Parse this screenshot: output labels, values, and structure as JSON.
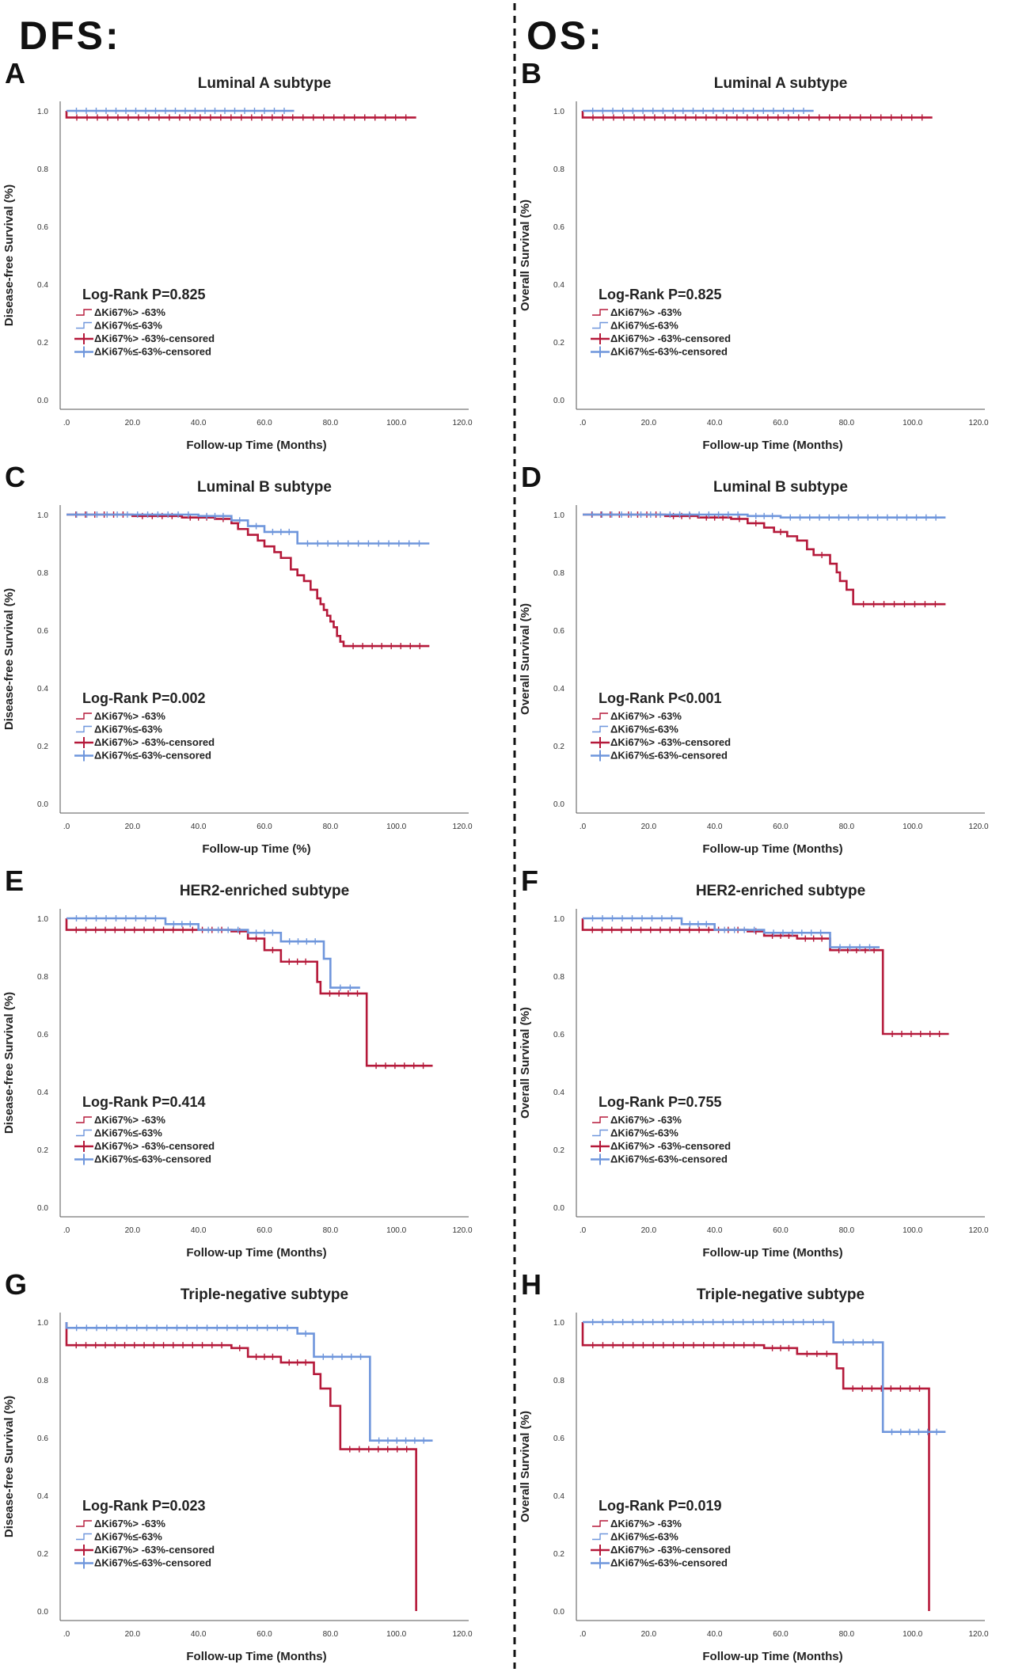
{
  "headers": {
    "left": "DFS:",
    "right": "OS:"
  },
  "colors": {
    "high": "#b5193a",
    "low": "#6f96dc",
    "axis": "#333333"
  },
  "chart_data": [
    {
      "type": "line",
      "letter": "A",
      "title": "Luminal A subtype",
      "xlabel": "Follow-up Time (Months)",
      "ylabel": "Disease-free Survival (%)",
      "xlim": [
        0,
        120
      ],
      "ylim": [
        0,
        1.0
      ],
      "xticks": [
        ".0",
        "20.0",
        "40.0",
        "60.0",
        "80.0",
        "100.0",
        "120.0"
      ],
      "yticks": [
        "0.0",
        "0.2",
        "0.4",
        "0.6",
        "0.8",
        "1.0"
      ],
      "pvalue": "Log-Rank P=0.825",
      "legend": [
        "ΔKi67%> -63%",
        "ΔKi67%≤-63%",
        "ΔKi67%> -63%-censored",
        "ΔKi67%≤-63%-censored"
      ],
      "series": [
        {
          "name": "ΔKi67%> -63%",
          "color": "#b5193a",
          "x": [
            0,
            0,
            106
          ],
          "y": [
            1.0,
            0.977,
            0.977
          ]
        },
        {
          "name": "ΔKi67%≤-63%",
          "color": "#6f96dc",
          "x": [
            0,
            69
          ],
          "y": [
            1.0,
            1.0
          ]
        }
      ]
    },
    {
      "type": "line",
      "letter": "B",
      "title": "Luminal A subtype",
      "xlabel": "Follow-up Time (Months)",
      "ylabel": "Overall Survival (%)",
      "xlim": [
        0,
        120
      ],
      "ylim": [
        0,
        1.0
      ],
      "xticks": [
        ".0",
        "20.0",
        "40.0",
        "60.0",
        "80.0",
        "100.0",
        "120.0"
      ],
      "yticks": [
        "0.0",
        "0.2",
        "0.4",
        "0.6",
        "0.8",
        "1.0"
      ],
      "pvalue": "Log-Rank P=0.825",
      "legend": [
        "ΔKi67%> -63%",
        "ΔKi67%≤-63%",
        "ΔKi67%> -63%-censored",
        "ΔKi67%≤-63%-censored"
      ],
      "series": [
        {
          "name": "ΔKi67%> -63%",
          "color": "#b5193a",
          "x": [
            0,
            0,
            106
          ],
          "y": [
            1.0,
            0.977,
            0.977
          ]
        },
        {
          "name": "ΔKi67%≤-63%",
          "color": "#6f96dc",
          "x": [
            0,
            70
          ],
          "y": [
            1.0,
            1.0
          ]
        }
      ]
    },
    {
      "type": "line",
      "letter": "C",
      "title": "Luminal B subtype",
      "xlabel": "Follow-up Time (%)",
      "ylabel": "Disease-free Survival (%)",
      "xlim": [
        0,
        120
      ],
      "ylim": [
        0,
        1.0
      ],
      "xticks": [
        ".0",
        "20.0",
        "40.0",
        "60.0",
        "80.0",
        "100.0",
        "120.0"
      ],
      "yticks": [
        "0.0",
        "0.2",
        "0.4",
        "0.6",
        "0.8",
        "1.0"
      ],
      "pvalue": "Log-Rank P=0.002",
      "legend": [
        "ΔKi67%> -63%",
        "ΔKi67%≤-63%",
        "ΔKi67%> -63%-censored",
        "ΔKi67%≤-63%-censored"
      ],
      "series": [
        {
          "name": "ΔKi67%> -63%",
          "color": "#b5193a",
          "x": [
            0,
            20,
            35,
            45,
            50,
            52,
            55,
            58,
            60,
            63,
            65,
            68,
            70,
            72,
            74,
            76,
            77,
            78,
            79,
            80,
            81,
            82,
            83,
            84,
            110
          ],
          "y": [
            1.0,
            0.995,
            0.99,
            0.985,
            0.97,
            0.95,
            0.93,
            0.91,
            0.89,
            0.87,
            0.85,
            0.81,
            0.79,
            0.77,
            0.74,
            0.71,
            0.69,
            0.67,
            0.65,
            0.63,
            0.61,
            0.58,
            0.56,
            0.545,
            0.545
          ]
        },
        {
          "name": "ΔKi67%≤-63%",
          "color": "#6f96dc",
          "x": [
            0,
            40,
            50,
            55,
            60,
            70,
            110
          ],
          "y": [
            1.0,
            0.995,
            0.98,
            0.96,
            0.94,
            0.9,
            0.9
          ]
        }
      ]
    },
    {
      "type": "line",
      "letter": "D",
      "title": "Luminal B subtype",
      "xlabel": "Follow-up Time (Months)",
      "ylabel": "Overall Survival (%)",
      "xlim": [
        0,
        120
      ],
      "ylim": [
        0,
        1.0
      ],
      "xticks": [
        ".0",
        "20.0",
        "40.0",
        "60.0",
        "80.0",
        "100.0",
        "120.0"
      ],
      "yticks": [
        "0.0",
        "0.2",
        "0.4",
        "0.6",
        "0.8",
        "1.0"
      ],
      "pvalue": "Log-Rank P<0.001",
      "legend": [
        "ΔKi67%> -63%",
        "ΔKi67%≤-63%",
        "ΔKi67%> -63%-censored",
        "ΔKi67%≤-63%-censored"
      ],
      "series": [
        {
          "name": "ΔKi67%> -63%",
          "color": "#b5193a",
          "x": [
            0,
            25,
            35,
            45,
            50,
            55,
            58,
            62,
            65,
            68,
            70,
            75,
            77,
            78,
            80,
            82,
            110
          ],
          "y": [
            1.0,
            0.995,
            0.99,
            0.985,
            0.97,
            0.955,
            0.94,
            0.925,
            0.91,
            0.88,
            0.86,
            0.83,
            0.8,
            0.77,
            0.74,
            0.69,
            0.69
          ]
        },
        {
          "name": "ΔKi67%≤-63%",
          "color": "#6f96dc",
          "x": [
            0,
            50,
            60,
            110
          ],
          "y": [
            1.0,
            0.995,
            0.99,
            0.99
          ]
        }
      ]
    },
    {
      "type": "line",
      "letter": "E",
      "title": "HER2-enriched subtype",
      "xlabel": "Follow-up Time (Months)",
      "ylabel": "Disease-free Survival (%)",
      "xlim": [
        0,
        120
      ],
      "ylim": [
        0,
        1.0
      ],
      "xticks": [
        ".0",
        "20.0",
        "40.0",
        "60.0",
        "80.0",
        "100.0",
        "120.0"
      ],
      "yticks": [
        "0.0",
        "0.2",
        "0.4",
        "0.6",
        "0.8",
        "1.0"
      ],
      "pvalue": "Log-Rank P=0.414",
      "legend": [
        "ΔKi67%> -63%",
        "ΔKi67%≤-63%",
        "ΔKi67%> -63%-censored",
        "ΔKi67%≤-63%-censored"
      ],
      "series": [
        {
          "name": "ΔKi67%> -63%",
          "color": "#b5193a",
          "x": [
            0,
            0,
            50,
            55,
            60,
            65,
            75,
            76,
            77,
            91,
            91,
            111
          ],
          "y": [
            1.0,
            0.96,
            0.955,
            0.93,
            0.89,
            0.85,
            0.85,
            0.78,
            0.74,
            0.74,
            0.49,
            0.49
          ]
        },
        {
          "name": "ΔKi67%≤-63%",
          "color": "#6f96dc",
          "x": [
            0,
            30,
            40,
            55,
            65,
            78,
            80,
            89
          ],
          "y": [
            1.0,
            0.98,
            0.96,
            0.95,
            0.92,
            0.86,
            0.76,
            0.76
          ]
        }
      ]
    },
    {
      "type": "line",
      "letter": "F",
      "title": "HER2-enriched subtype",
      "xlabel": "Follow-up Time (Months)",
      "ylabel": "Overall Survival (%)",
      "xlim": [
        0,
        120
      ],
      "ylim": [
        0,
        1.0
      ],
      "xticks": [
        ".0",
        "20.0",
        "40.0",
        "60.0",
        "80.0",
        "100.0",
        "120.0"
      ],
      "yticks": [
        "0.0",
        "0.2",
        "0.4",
        "0.6",
        "0.8",
        "1.0"
      ],
      "pvalue": "Log-Rank P=0.755",
      "legend": [
        "ΔKi67%> -63%",
        "ΔKi67%≤-63%",
        "ΔKi67%> -63%-censored",
        "ΔKi67%≤-63%-censored"
      ],
      "series": [
        {
          "name": "ΔKi67%> -63%",
          "color": "#b5193a",
          "x": [
            0,
            0,
            50,
            55,
            65,
            75,
            91,
            91,
            111
          ],
          "y": [
            1.0,
            0.96,
            0.955,
            0.94,
            0.93,
            0.89,
            0.89,
            0.6,
            0.6
          ]
        },
        {
          "name": "ΔKi67%≤-63%",
          "color": "#6f96dc",
          "x": [
            0,
            30,
            40,
            55,
            75,
            90
          ],
          "y": [
            1.0,
            0.98,
            0.96,
            0.95,
            0.9,
            0.9
          ]
        }
      ]
    },
    {
      "type": "line",
      "letter": "G",
      "title": "Triple-negative subtype",
      "xlabel": "Follow-up Time (Months)",
      "ylabel": "Disease-free Survival (%)",
      "xlim": [
        0,
        120
      ],
      "ylim": [
        0,
        1.0
      ],
      "xticks": [
        ".0",
        "20.0",
        "40.0",
        "60.0",
        "80.0",
        "100.0",
        "120.0"
      ],
      "yticks": [
        "0.0",
        "0.2",
        "0.4",
        "0.6",
        "0.8",
        "1.0"
      ],
      "pvalue": "Log-Rank P=0.023",
      "legend": [
        "ΔKi67%> -63%",
        "ΔKi67%≤-63%",
        "ΔKi67%> -63%-censored",
        "ΔKi67%≤-63%-censored"
      ],
      "series": [
        {
          "name": "ΔKi67%> -63%",
          "color": "#b5193a",
          "x": [
            0,
            0,
            50,
            55,
            65,
            75,
            77,
            80,
            83,
            106,
            106
          ],
          "y": [
            1.0,
            0.92,
            0.91,
            0.88,
            0.86,
            0.82,
            0.77,
            0.71,
            0.56,
            0.56,
            0.0
          ]
        },
        {
          "name": "ΔKi67%≤-63%",
          "color": "#6f96dc",
          "x": [
            0,
            0,
            70,
            75,
            92,
            92,
            111
          ],
          "y": [
            1.0,
            0.98,
            0.96,
            0.88,
            0.88,
            0.59,
            0.59
          ]
        }
      ]
    },
    {
      "type": "line",
      "letter": "H",
      "title": "Triple-negative subtype",
      "xlabel": "Follow-up Time (Months)",
      "ylabel": "Overall Survival (%)",
      "xlim": [
        0,
        120
      ],
      "ylim": [
        0,
        1.0
      ],
      "xticks": [
        ".0",
        "20.0",
        "40.0",
        "60.0",
        "80.0",
        "100.0",
        "120.0"
      ],
      "yticks": [
        "0.0",
        "0.2",
        "0.4",
        "0.6",
        "0.8",
        "1.0"
      ],
      "pvalue": "Log-Rank P=0.019",
      "legend": [
        "ΔKi67%> -63%",
        "ΔKi67%≤-63%",
        "ΔKi67%> -63%-censored",
        "ΔKi67%≤-63%-censored"
      ],
      "series": [
        {
          "name": "ΔKi67%> -63%",
          "color": "#b5193a",
          "x": [
            0,
            0,
            55,
            65,
            77,
            79,
            105,
            105
          ],
          "y": [
            1.0,
            0.92,
            0.91,
            0.89,
            0.84,
            0.77,
            0.77,
            0.0
          ]
        },
        {
          "name": "ΔKi67%≤-63%",
          "color": "#6f96dc",
          "x": [
            0,
            76,
            91,
            91,
            110
          ],
          "y": [
            1.0,
            0.93,
            0.93,
            0.62,
            0.62
          ]
        }
      ]
    }
  ]
}
